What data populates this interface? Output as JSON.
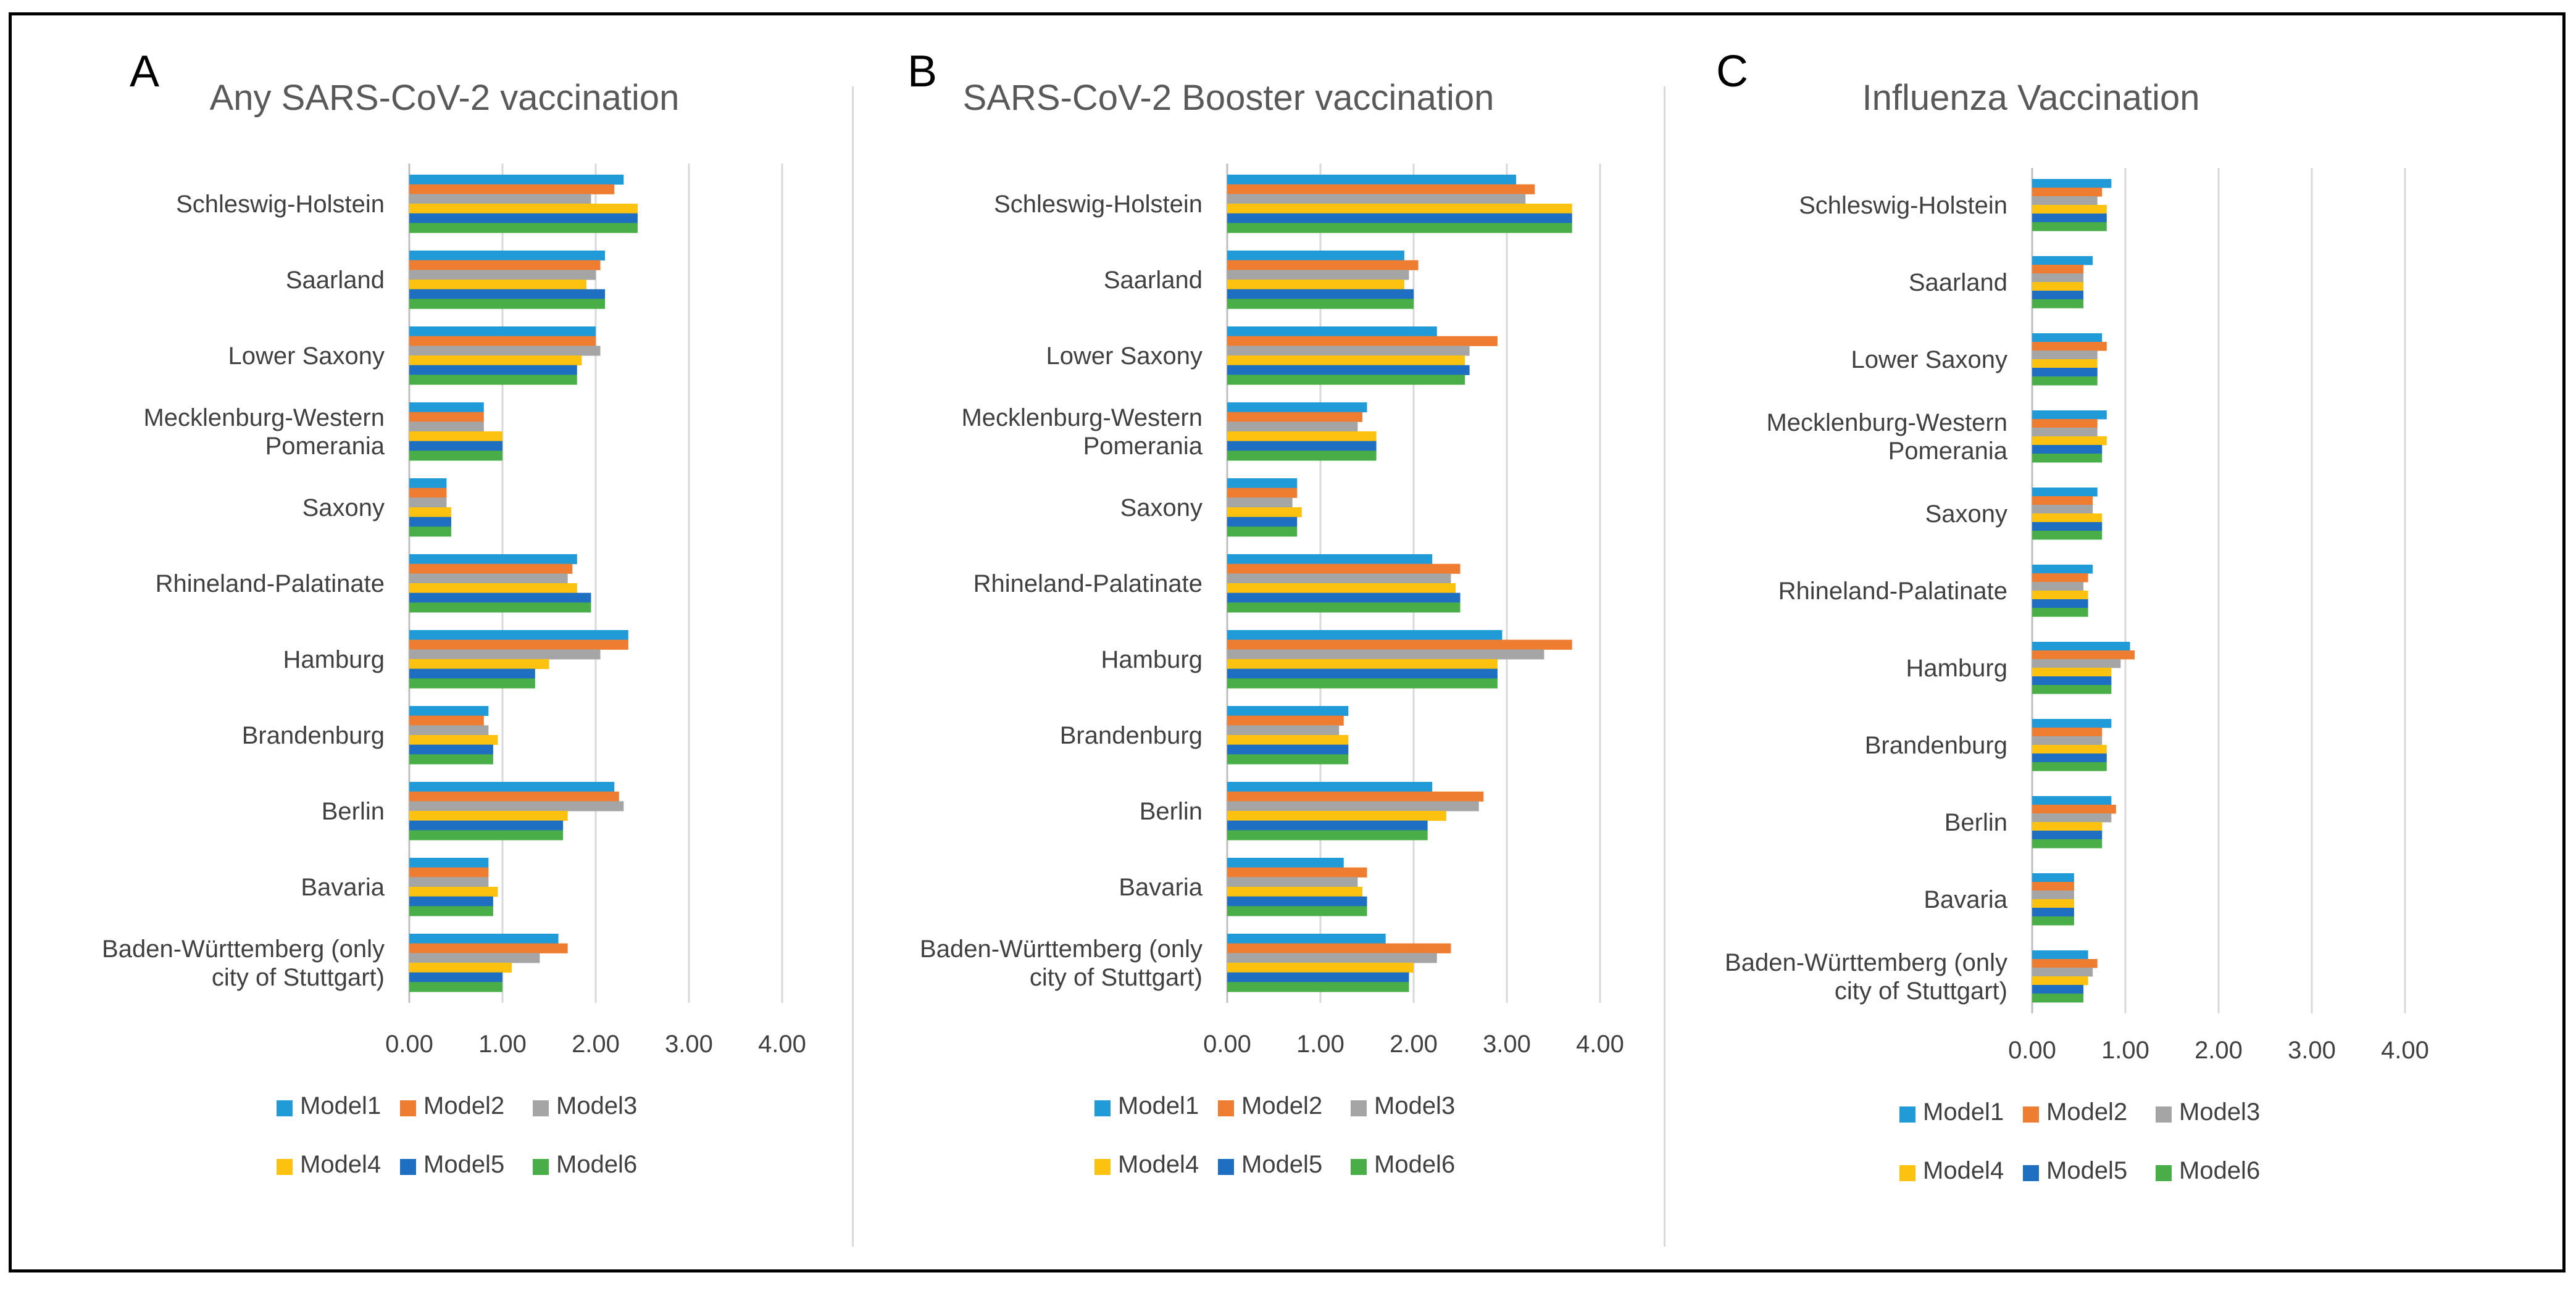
{
  "panels": [
    {
      "letter": "A",
      "title": "Any SARS-CoV-2 vaccination"
    },
    {
      "letter": "B",
      "title": "SARS-CoV-2 Booster vaccination"
    },
    {
      "letter": "C",
      "title": "Influenza Vaccination"
    }
  ],
  "colors": {
    "Model1": "#219ad8",
    "Model2": "#ef7d31",
    "Model3": "#a5a5a5",
    "Model4": "#fdc110",
    "Model5": "#1e6fc1",
    "Model6": "#4aae48",
    "grid": "#d9d9d9",
    "text": "#404040"
  },
  "chart_data": [
    {
      "type": "bar",
      "orientation": "horizontal",
      "title": "Any SARS-CoV-2 vaccination",
      "categories": [
        "Schleswig-Holstein",
        "Saarland",
        "Lower Saxony",
        "Mecklenburg-Western Pomerania",
        "Saxony",
        "Rhineland-Palatinate",
        "Hamburg",
        "Brandenburg",
        "Berlin",
        "Bavaria",
        "Baden-Württemberg (only city of Stuttgart)"
      ],
      "category_label_lines": [
        [
          "Schleswig-Holstein"
        ],
        [
          "Saarland"
        ],
        [
          "Lower Saxony"
        ],
        [
          "Mecklenburg-Western",
          "Pomerania"
        ],
        [
          "Saxony"
        ],
        [
          "Rhineland-Palatinate"
        ],
        [
          "Hamburg"
        ],
        [
          "Brandenburg"
        ],
        [
          "Berlin"
        ],
        [
          "Bavaria"
        ],
        [
          "Baden-Württemberg (only",
          "city of Stuttgart)"
        ]
      ],
      "series": [
        {
          "name": "Model1",
          "values": [
            2.3,
            2.1,
            2.0,
            0.8,
            0.4,
            1.8,
            2.35,
            0.85,
            2.2,
            0.85,
            1.6
          ]
        },
        {
          "name": "Model2",
          "values": [
            2.2,
            2.05,
            2.0,
            0.8,
            0.4,
            1.75,
            2.35,
            0.8,
            2.25,
            0.85,
            1.7
          ]
        },
        {
          "name": "Model3",
          "values": [
            1.95,
            2.0,
            2.05,
            0.8,
            0.4,
            1.7,
            2.05,
            0.85,
            2.3,
            0.85,
            1.4
          ]
        },
        {
          "name": "Model4",
          "values": [
            2.45,
            1.9,
            1.85,
            1.0,
            0.45,
            1.8,
            1.5,
            0.95,
            1.7,
            0.95,
            1.1
          ]
        },
        {
          "name": "Model5",
          "values": [
            2.45,
            2.1,
            1.8,
            1.0,
            0.45,
            1.95,
            1.35,
            0.9,
            1.65,
            0.9,
            1.0
          ]
        },
        {
          "name": "Model6",
          "values": [
            2.45,
            2.1,
            1.8,
            1.0,
            0.45,
            1.95,
            1.35,
            0.9,
            1.65,
            0.9,
            1.0
          ]
        }
      ],
      "xlim": [
        0,
        4
      ],
      "xticks": [
        "0.00",
        "1.00",
        "2.00",
        "3.00",
        "4.00"
      ],
      "legend": [
        "Model1",
        "Model2",
        "Model3",
        "Model4",
        "Model5",
        "Model6"
      ]
    },
    {
      "type": "bar",
      "orientation": "horizontal",
      "title": "SARS-CoV-2 Booster vaccination",
      "categories": [
        "Schleswig-Holstein",
        "Saarland",
        "Lower Saxony",
        "Mecklenburg-Western Pomerania",
        "Saxony",
        "Rhineland-Palatinate",
        "Hamburg",
        "Brandenburg",
        "Berlin",
        "Bavaria",
        "Baden-Württemberg (only city of Stuttgart)"
      ],
      "category_label_lines": [
        [
          "Schleswig-Holstein"
        ],
        [
          "Saarland"
        ],
        [
          "Lower Saxony"
        ],
        [
          "Mecklenburg-Western",
          "Pomerania"
        ],
        [
          "Saxony"
        ],
        [
          "Rhineland-Palatinate"
        ],
        [
          "Hamburg"
        ],
        [
          "Brandenburg"
        ],
        [
          "Berlin"
        ],
        [
          "Bavaria"
        ],
        [
          "Baden-Württemberg (only",
          "city of Stuttgart)"
        ]
      ],
      "series": [
        {
          "name": "Model1",
          "values": [
            3.1,
            1.9,
            2.25,
            1.5,
            0.75,
            2.2,
            2.95,
            1.3,
            2.2,
            1.25,
            1.7
          ]
        },
        {
          "name": "Model2",
          "values": [
            3.3,
            2.05,
            2.9,
            1.45,
            0.75,
            2.5,
            3.7,
            1.25,
            2.75,
            1.5,
            2.4
          ]
        },
        {
          "name": "Model3",
          "values": [
            3.2,
            1.95,
            2.6,
            1.4,
            0.7,
            2.4,
            3.4,
            1.2,
            2.7,
            1.4,
            2.25
          ]
        },
        {
          "name": "Model4",
          "values": [
            3.7,
            1.9,
            2.55,
            1.6,
            0.8,
            2.45,
            2.9,
            1.3,
            2.35,
            1.45,
            2.0
          ]
        },
        {
          "name": "Model5",
          "values": [
            3.7,
            2.0,
            2.6,
            1.6,
            0.75,
            2.5,
            2.9,
            1.3,
            2.15,
            1.5,
            1.95
          ]
        },
        {
          "name": "Model6",
          "values": [
            3.7,
            2.0,
            2.55,
            1.6,
            0.75,
            2.5,
            2.9,
            1.3,
            2.15,
            1.5,
            1.95
          ]
        }
      ],
      "xlim": [
        0,
        4
      ],
      "xticks": [
        "0.00",
        "1.00",
        "2.00",
        "3.00",
        "4.00"
      ],
      "legend": [
        "Model1",
        "Model2",
        "Model3",
        "Model4",
        "Model5",
        "Model6"
      ]
    },
    {
      "type": "bar",
      "orientation": "horizontal",
      "title": "Influenza Vaccination",
      "categories": [
        "Schleswig-Holstein",
        "Saarland",
        "Lower Saxony",
        "Mecklenburg-Western Pomerania",
        "Saxony",
        "Rhineland-Palatinate",
        "Hamburg",
        "Brandenburg",
        "Berlin",
        "Bavaria",
        "Baden-Württemberg (only city of Stuttgart)"
      ],
      "category_label_lines": [
        [
          "Schleswig-Holstein"
        ],
        [
          "Saarland"
        ],
        [
          "Lower Saxony"
        ],
        [
          "Mecklenburg-Western",
          "Pomerania"
        ],
        [
          "Saxony"
        ],
        [
          "Rhineland-Palatinate"
        ],
        [
          "Hamburg"
        ],
        [
          "Brandenburg"
        ],
        [
          "Berlin"
        ],
        [
          "Bavaria"
        ],
        [
          "Baden-Württemberg (only",
          "city of Stuttgart)"
        ]
      ],
      "series": [
        {
          "name": "Model1",
          "values": [
            0.85,
            0.65,
            0.75,
            0.8,
            0.7,
            0.65,
            1.05,
            0.85,
            0.85,
            0.45,
            0.6
          ]
        },
        {
          "name": "Model2",
          "values": [
            0.75,
            0.55,
            0.8,
            0.7,
            0.65,
            0.6,
            1.1,
            0.75,
            0.9,
            0.45,
            0.7
          ]
        },
        {
          "name": "Model3",
          "values": [
            0.7,
            0.55,
            0.7,
            0.7,
            0.65,
            0.55,
            0.95,
            0.75,
            0.85,
            0.45,
            0.65
          ]
        },
        {
          "name": "Model4",
          "values": [
            0.8,
            0.55,
            0.7,
            0.8,
            0.75,
            0.6,
            0.85,
            0.8,
            0.75,
            0.45,
            0.6
          ]
        },
        {
          "name": "Model5",
          "values": [
            0.8,
            0.55,
            0.7,
            0.75,
            0.75,
            0.6,
            0.85,
            0.8,
            0.75,
            0.45,
            0.55
          ]
        },
        {
          "name": "Model6",
          "values": [
            0.8,
            0.55,
            0.7,
            0.75,
            0.75,
            0.6,
            0.85,
            0.8,
            0.75,
            0.45,
            0.55
          ]
        }
      ],
      "xlim": [
        0,
        4
      ],
      "xticks": [
        "0.00",
        "1.00",
        "2.00",
        "3.00",
        "4.00"
      ],
      "legend": [
        "Model1",
        "Model2",
        "Model3",
        "Model4",
        "Model5",
        "Model6"
      ]
    }
  ]
}
